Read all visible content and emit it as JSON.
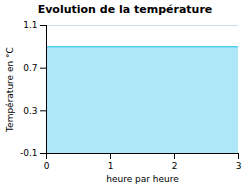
{
  "chart_data": {
    "type": "area",
    "title": "Evolution de la température",
    "xlabel": "heure par heure",
    "ylabel": "Température en °C",
    "x": [
      0,
      3
    ],
    "values": [
      0.9,
      0.9
    ],
    "baseline": -0.1,
    "colors": [
      "#aee8f8",
      "#55ccee"
    ],
    "xlim": [
      0,
      3
    ],
    "ylim": [
      -0.1,
      1.1
    ],
    "xticks": [
      0,
      1,
      2,
      3
    ],
    "yticks": [
      -0.1,
      0.3,
      0.7,
      1.1
    ],
    "grid": "y"
  }
}
